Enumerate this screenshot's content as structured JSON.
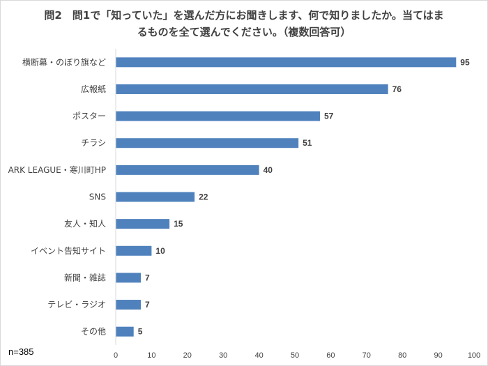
{
  "chart_data": {
    "type": "bar",
    "orientation": "horizontal",
    "title": "問2　問1で「知っていた」を選んだ方にお聞きします、何で知りましたか。当てはまるものを全て選んでください。（複数回答可）",
    "note": "n=385",
    "categories": [
      "横断幕・のぼり旗など",
      "広報紙",
      "ポスター",
      "チラシ",
      "ARK LEAGUE・寒川町HP",
      "SNS",
      "友人・知人",
      "イベント告知サイト",
      "新聞・雑誌",
      "テレビ・ラジオ",
      "その他"
    ],
    "values": [
      95,
      76,
      57,
      51,
      40,
      22,
      15,
      10,
      7,
      7,
      5
    ],
    "xlim": [
      0,
      100
    ],
    "xticks": [
      "0",
      "10",
      "20",
      "30",
      "40",
      "50",
      "60",
      "70",
      "80",
      "90",
      "100"
    ],
    "grid": false,
    "legend": "none",
    "bar_color": "#4f81bd"
  }
}
